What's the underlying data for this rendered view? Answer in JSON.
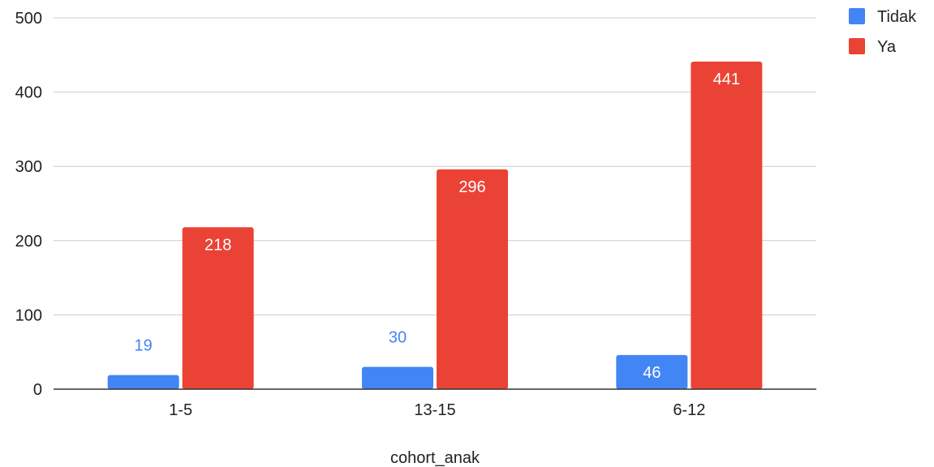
{
  "chart_data": {
    "type": "bar",
    "title": "",
    "xlabel": "cohort_anak",
    "ylabel": "",
    "categories": [
      "1-5",
      "13-15",
      "6-12"
    ],
    "series": [
      {
        "name": "Tidak",
        "color": "#4285f4",
        "values": [
          19,
          30,
          46
        ]
      },
      {
        "name": "Ya",
        "color": "#ea4335",
        "values": [
          218,
          296,
          441
        ]
      }
    ],
    "ylim": [
      0,
      500
    ],
    "yticks": [
      0,
      100,
      200,
      300,
      400,
      500
    ],
    "grid": true,
    "legend": "top-right"
  }
}
